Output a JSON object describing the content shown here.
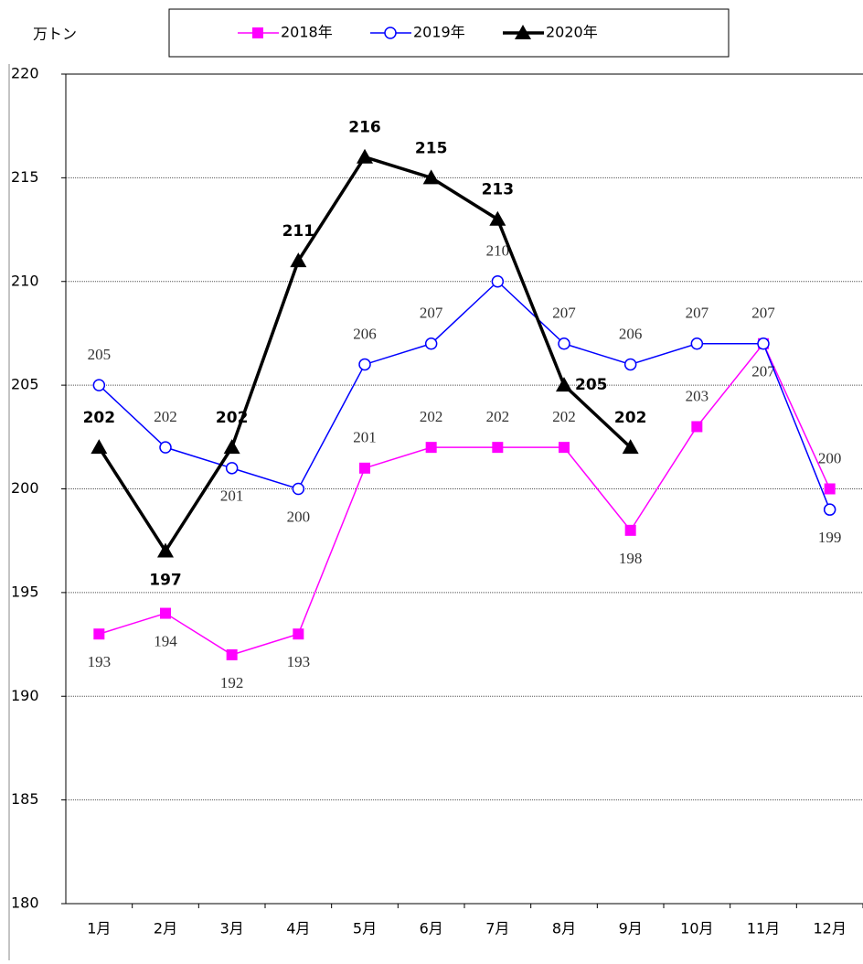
{
  "chart_data": {
    "type": "line",
    "y_axis_label": "万トン",
    "categories": [
      "1月",
      "2月",
      "3月",
      "4月",
      "5月",
      "6月",
      "7月",
      "8月",
      "9月",
      "10月",
      "11月",
      "12月"
    ],
    "series": [
      {
        "name": "2018年",
        "color": "#ff00ff",
        "marker": "square",
        "values": [
          193,
          194,
          192,
          193,
          201,
          202,
          202,
          202,
          198,
          203,
          207,
          200
        ]
      },
      {
        "name": "2019年",
        "color": "#0000ff",
        "marker": "circle",
        "values": [
          205,
          202,
          201,
          200,
          206,
          207,
          210,
          207,
          206,
          207,
          207,
          199
        ]
      },
      {
        "name": "2020年",
        "color": "#000000",
        "marker": "triangle",
        "values": [
          202,
          197,
          202,
          211,
          216,
          215,
          213,
          205,
          202,
          null,
          null,
          null
        ]
      }
    ],
    "ylim": [
      180,
      220
    ],
    "yticks": [
      180,
      185,
      190,
      195,
      200,
      205,
      210,
      215,
      220
    ],
    "grid": true
  }
}
